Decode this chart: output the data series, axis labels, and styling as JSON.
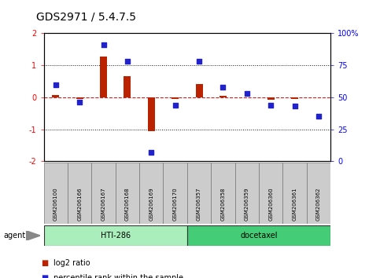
{
  "title": "GDS2971 / 5.4.7.5",
  "samples": [
    "GSM206100",
    "GSM206166",
    "GSM206167",
    "GSM206168",
    "GSM206169",
    "GSM206170",
    "GSM206357",
    "GSM206358",
    "GSM206359",
    "GSM206360",
    "GSM206361",
    "GSM206362"
  ],
  "log2_ratio": [
    0.08,
    -0.05,
    1.27,
    0.65,
    -1.05,
    -0.05,
    0.42,
    0.05,
    0.0,
    -0.08,
    -0.05,
    0.0
  ],
  "percentile_rank": [
    60,
    46,
    91,
    78,
    7,
    44,
    78,
    58,
    53,
    44,
    43,
    35
  ],
  "groups": [
    {
      "label": "HTI-286",
      "start": 0,
      "end": 6,
      "color": "#AAEEBB"
    },
    {
      "label": "docetaxel",
      "start": 6,
      "end": 12,
      "color": "#44CC77"
    }
  ],
  "agent_label": "agent",
  "ylim_left": [
    -2,
    2
  ],
  "ylim_right": [
    0,
    100
  ],
  "yticks_left": [
    -2,
    -1,
    0,
    1,
    2
  ],
  "yticks_right": [
    0,
    25,
    50,
    75,
    100
  ],
  "yticklabels_right": [
    "0",
    "25",
    "50",
    "75",
    "100%"
  ],
  "bar_color": "#BB2200",
  "dot_color": "#2222CC",
  "hline_color": "#CC2222",
  "dotted_line_color": "#111111",
  "legend": [
    {
      "color": "#BB2200",
      "label": "log2 ratio"
    },
    {
      "color": "#2222CC",
      "label": "percentile rank within the sample"
    }
  ],
  "bg_color": "#FFFFFF",
  "plot_bg_color": "#FFFFFF",
  "tick_area_color": "#CCCCCC",
  "group_border_color": "#333333",
  "title_fontsize": 10,
  "axis_fontsize": 7,
  "label_fontsize": 7
}
